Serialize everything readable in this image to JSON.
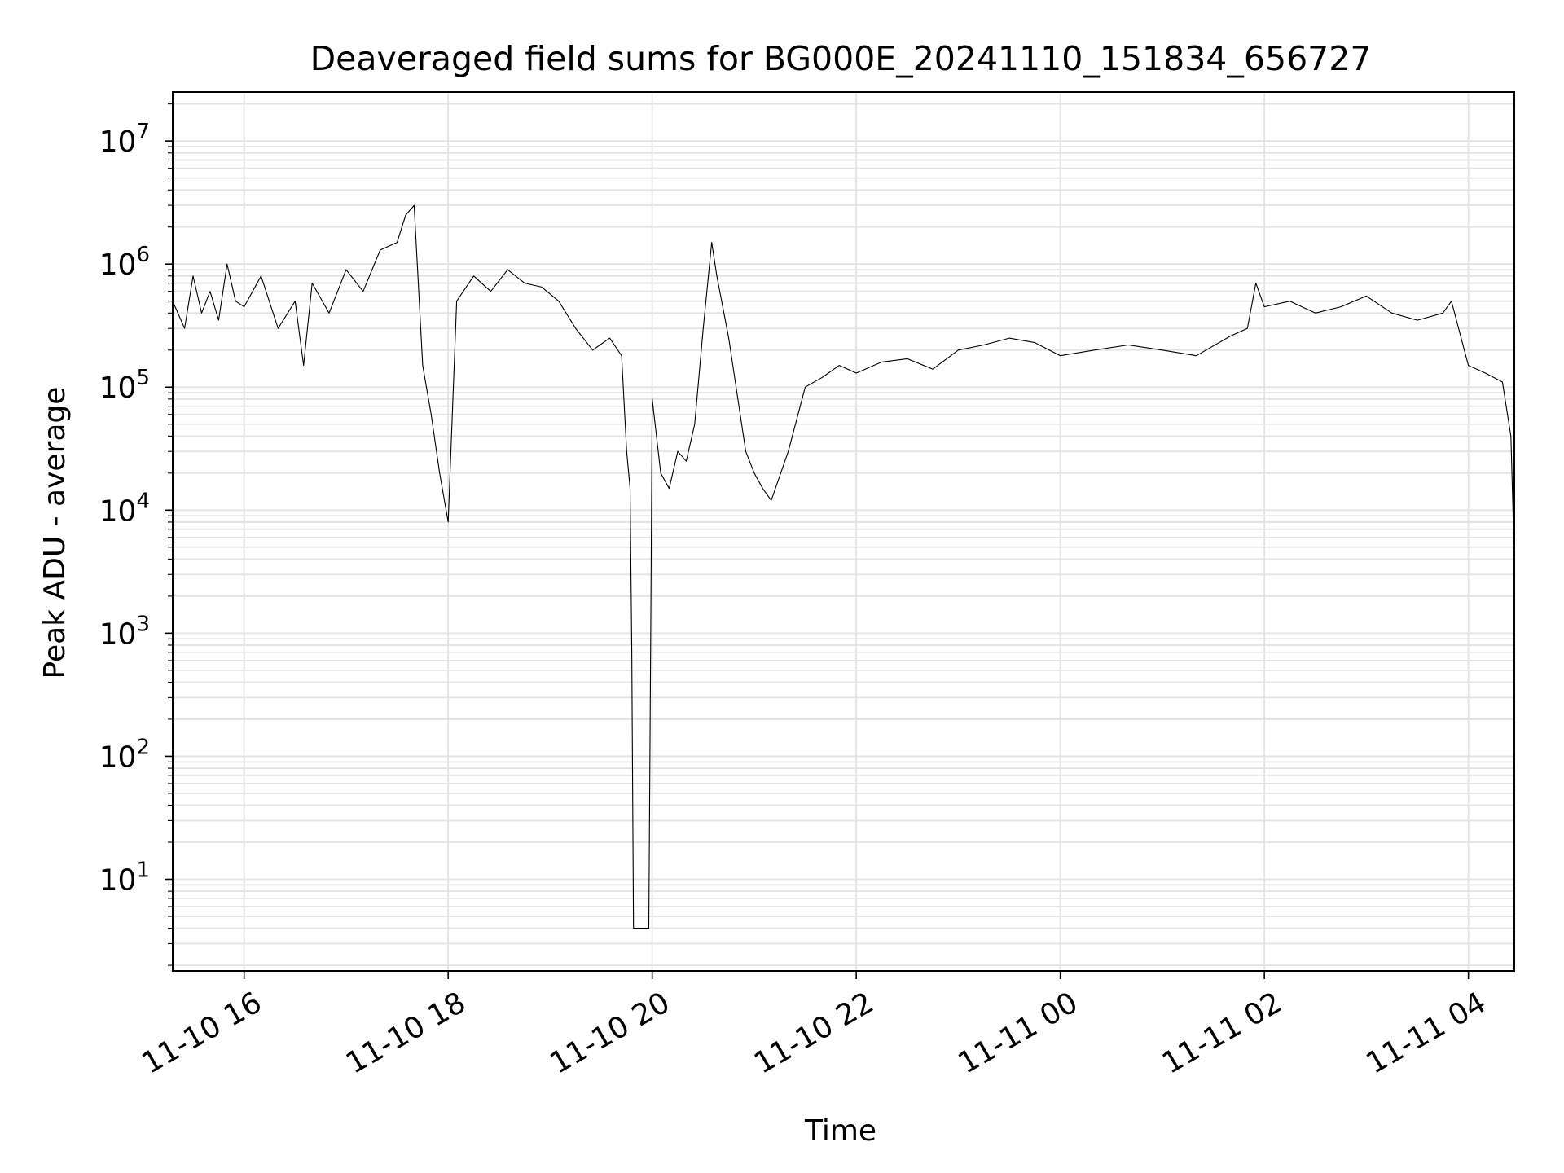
{
  "chart_data": {
    "type": "line",
    "title": "Deaveraged field sums for BG000E_20241110_151834_656727",
    "xlabel": "Time",
    "ylabel": "Peak ADU - average",
    "xscale": "time",
    "yscale": "log",
    "xlim": [
      "2024-11-10 15:18",
      "2024-11-11 04:27"
    ],
    "ylim": [
      1.8,
      25000000
    ],
    "grid": "on (major and minor)",
    "x_tick_labels": [
      "11-10 16",
      "11-10 18",
      "11-10 20",
      "11-10 22",
      "11-11 00",
      "11-11 02",
      "11-11 04"
    ],
    "x_ticks": [
      "2024-11-10 16:00",
      "2024-11-10 18:00",
      "2024-11-10 20:00",
      "2024-11-10 22:00",
      "2024-11-11 00:00",
      "2024-11-11 02:00",
      "2024-11-11 04:00"
    ],
    "y_tick_labels": [
      {
        "base": "10",
        "exp": "1",
        "value": 10
      },
      {
        "base": "10",
        "exp": "2",
        "value": 100
      },
      {
        "base": "10",
        "exp": "3",
        "value": 1000
      },
      {
        "base": "10",
        "exp": "4",
        "value": 10000
      },
      {
        "base": "10",
        "exp": "5",
        "value": 100000
      },
      {
        "base": "10",
        "exp": "6",
        "value": 1000000
      },
      {
        "base": "10",
        "exp": "7",
        "value": 10000000
      }
    ],
    "series": [
      {
        "color": "#000000",
        "x": [
          "2024-11-10 15:18",
          "2024-11-10 15:25",
          "2024-11-10 15:30",
          "2024-11-10 15:35",
          "2024-11-10 15:40",
          "2024-11-10 15:45",
          "2024-11-10 15:50",
          "2024-11-10 15:55",
          "2024-11-10 16:00",
          "2024-11-10 16:10",
          "2024-11-10 16:20",
          "2024-11-10 16:30",
          "2024-11-10 16:35",
          "2024-11-10 16:40",
          "2024-11-10 16:50",
          "2024-11-10 17:00",
          "2024-11-10 17:10",
          "2024-11-10 17:20",
          "2024-11-10 17:30",
          "2024-11-10 17:35",
          "2024-11-10 17:40",
          "2024-11-10 17:45",
          "2024-11-10 17:50",
          "2024-11-10 17:55",
          "2024-11-10 18:00",
          "2024-11-10 18:05",
          "2024-11-10 18:15",
          "2024-11-10 18:25",
          "2024-11-10 18:35",
          "2024-11-10 18:45",
          "2024-11-10 18:55",
          "2024-11-10 19:05",
          "2024-11-10 19:15",
          "2024-11-10 19:25",
          "2024-11-10 19:35",
          "2024-11-10 19:42",
          "2024-11-10 19:45",
          "2024-11-10 19:47",
          "2024-11-10 19:48",
          "2024-11-10 19:49",
          "2024-11-10 19:50",
          "2024-11-10 19:52",
          "2024-11-10 19:55",
          "2024-11-10 19:57",
          "2024-11-10 19:58",
          "2024-11-10 20:00",
          "2024-11-10 20:05",
          "2024-11-10 20:10",
          "2024-11-10 20:15",
          "2024-11-10 20:20",
          "2024-11-10 20:25",
          "2024-11-10 20:30",
          "2024-11-10 20:35",
          "2024-11-10 20:38",
          "2024-11-10 20:45",
          "2024-11-10 20:55",
          "2024-11-10 21:00",
          "2024-11-10 21:05",
          "2024-11-10 21:10",
          "2024-11-10 21:20",
          "2024-11-10 21:30",
          "2024-11-10 21:40",
          "2024-11-10 21:50",
          "2024-11-10 22:00",
          "2024-11-10 22:15",
          "2024-11-10 22:30",
          "2024-11-10 22:45",
          "2024-11-10 23:00",
          "2024-11-10 23:15",
          "2024-11-10 23:30",
          "2024-11-10 23:45",
          "2024-11-11 00:00",
          "2024-11-11 00:20",
          "2024-11-11 00:40",
          "2024-11-11 01:00",
          "2024-11-11 01:20",
          "2024-11-11 01:40",
          "2024-11-11 01:50",
          "2024-11-11 01:55",
          "2024-11-11 02:00",
          "2024-11-11 02:15",
          "2024-11-11 02:30",
          "2024-11-11 02:45",
          "2024-11-11 03:00",
          "2024-11-11 03:15",
          "2024-11-11 03:30",
          "2024-11-11 03:45",
          "2024-11-11 03:50",
          "2024-11-11 04:00",
          "2024-11-11 04:10",
          "2024-11-11 04:20",
          "2024-11-11 04:25",
          "2024-11-11 04:27"
        ],
        "values": [
          500000,
          300000,
          800000,
          400000,
          600000,
          350000,
          1000000,
          500000,
          450000,
          800000,
          300000,
          500000,
          150000,
          700000,
          400000,
          900000,
          600000,
          1300000,
          1500000,
          2500000,
          3000000,
          150000,
          60000,
          20000,
          8000,
          500000,
          800000,
          600000,
          900000,
          700000,
          650000,
          500000,
          300000,
          200000,
          250000,
          180000,
          30000,
          15000,
          700,
          4,
          4,
          4,
          4,
          4,
          4,
          80000,
          20000,
          15000,
          30000,
          25000,
          50000,
          300000,
          1500000,
          800000,
          250000,
          30000,
          20000,
          15000,
          12000,
          30000,
          100000,
          120000,
          150000,
          130000,
          160000,
          170000,
          140000,
          200000,
          220000,
          250000,
          230000,
          180000,
          200000,
          220000,
          200000,
          180000,
          260000,
          300000,
          700000,
          450000,
          500000,
          400000,
          450000,
          550000,
          400000,
          350000,
          400000,
          500000,
          150000,
          130000,
          110000,
          40000,
          4000
        ]
      }
    ]
  }
}
